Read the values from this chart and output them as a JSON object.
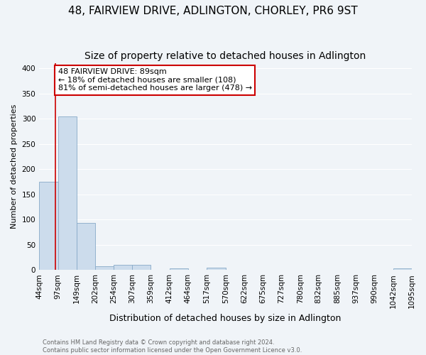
{
  "title": "48, FAIRVIEW DRIVE, ADLINGTON, CHORLEY, PR6 9ST",
  "subtitle": "Size of property relative to detached houses in Adlington",
  "xlabel": "Distribution of detached houses by size in Adlington",
  "ylabel": "Number of detached properties",
  "bin_labels": [
    "44sqm",
    "97sqm",
    "149sqm",
    "202sqm",
    "254sqm",
    "307sqm",
    "359sqm",
    "412sqm",
    "464sqm",
    "517sqm",
    "570sqm",
    "622sqm",
    "675sqm",
    "727sqm",
    "780sqm",
    "832sqm",
    "885sqm",
    "937sqm",
    "990sqm",
    "1042sqm",
    "1095sqm"
  ],
  "bin_edges": [
    44,
    97,
    149,
    202,
    254,
    307,
    359,
    412,
    464,
    517,
    570,
    622,
    675,
    727,
    780,
    832,
    885,
    937,
    990,
    1042,
    1095
  ],
  "bar_heights": [
    175,
    305,
    93,
    8,
    10,
    10,
    0,
    3,
    0,
    4,
    0,
    0,
    0,
    0,
    0,
    0,
    0,
    0,
    0,
    3,
    0
  ],
  "bar_color": "#ccdcec",
  "bar_edge_color": "#88aac8",
  "property_size": 89,
  "property_line_color": "#cc0000",
  "annotation_line1": "48 FAIRVIEW DRIVE: 89sqm",
  "annotation_line2": "← 18% of detached houses are smaller (108)",
  "annotation_line3": "81% of semi-detached houses are larger (478) →",
  "annotation_box_facecolor": "#ffffff",
  "annotation_box_edgecolor": "#cc0000",
  "ylim": [
    0,
    410
  ],
  "yticks": [
    0,
    50,
    100,
    150,
    200,
    250,
    300,
    350,
    400
  ],
  "footer": "Contains HM Land Registry data © Crown copyright and database right 2024.\nContains public sector information licensed under the Open Government Licence v3.0.",
  "background_color": "#f0f4f8",
  "plot_bg_color": "#f0f4f8",
  "grid_color": "#ffffff",
  "title_fontsize": 11,
  "subtitle_fontsize": 10,
  "xlabel_fontsize": 9,
  "ylabel_fontsize": 8,
  "tick_fontsize": 7.5,
  "footer_fontsize": 6,
  "annot_fontsize": 8
}
